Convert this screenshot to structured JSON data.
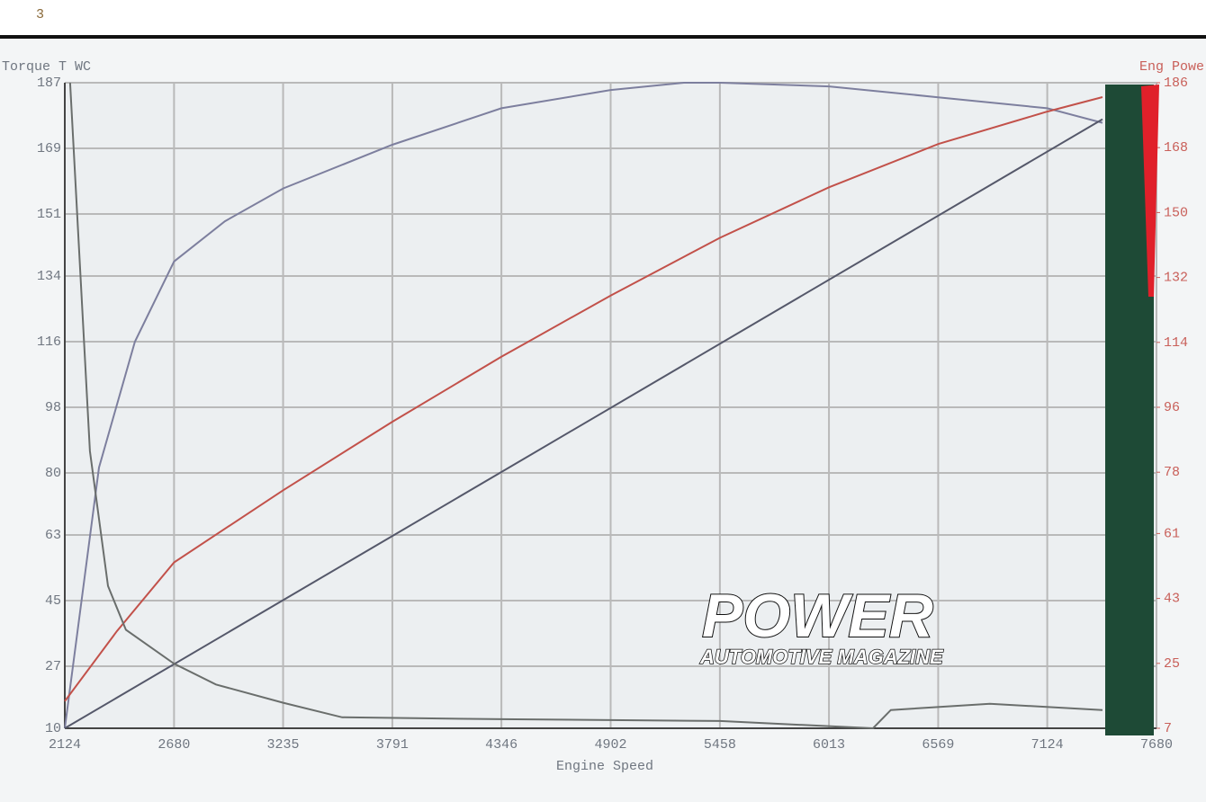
{
  "chart_data": {
    "type": "line",
    "annotation": "3",
    "ylabel": "Torque T WC",
    "y2label": "Eng Powe",
    "xlabel": "Engine Speed",
    "watermark": {
      "title": "POWER",
      "subtitle": "AUTOMOTIVE MAGAZINE"
    },
    "xlim": [
      2124,
      7680
    ],
    "xticks": [
      2124,
      2680,
      3235,
      3791,
      4346,
      4902,
      5458,
      6013,
      6569,
      7124,
      7680
    ],
    "ylim": [
      10,
      187
    ],
    "yticks": [
      10,
      27,
      45,
      63,
      80,
      98,
      116,
      134,
      151,
      169,
      187
    ],
    "y2lim": [
      7,
      186
    ],
    "y2ticks": [
      7,
      25,
      43,
      61,
      78,
      96,
      114,
      132,
      150,
      168,
      186
    ],
    "grid": true,
    "series": [
      {
        "color": "#7d7f9e",
        "x": [
          2124,
          2298,
          2481,
          2680,
          2939,
          3235,
          3791,
          4346,
          4902,
          5275,
          5458,
          6013,
          6569,
          7124,
          7405
        ],
        "values": [
          10,
          81.5,
          116,
          138,
          149,
          158,
          170,
          180,
          185,
          187,
          187,
          186,
          183,
          180,
          176
        ]
      },
      {
        "color": "#c2514a",
        "axis": "y2",
        "x": [
          2124,
          2390,
          2680,
          3235,
          3791,
          4346,
          4902,
          5458,
          6013,
          6569,
          7124,
          7405
        ],
        "values": [
          14.5,
          34,
          53,
          73,
          92,
          110,
          127,
          143,
          157,
          169,
          178,
          182
        ]
      },
      {
        "color": "#55586a",
        "x": [
          2124,
          7405
        ],
        "values": [
          10,
          177
        ]
      },
      {
        "color": "#6a6e6c",
        "x": [
          2151,
          2252,
          2344,
          2435,
          2680,
          2893,
          3235,
          3535,
          4346,
          5458,
          6237,
          6328,
          6832,
          7405
        ],
        "values": [
          187,
          86,
          49,
          37,
          27.7,
          22,
          17,
          13,
          12.5,
          12,
          10,
          15,
          16.7,
          15
        ]
      }
    ]
  }
}
